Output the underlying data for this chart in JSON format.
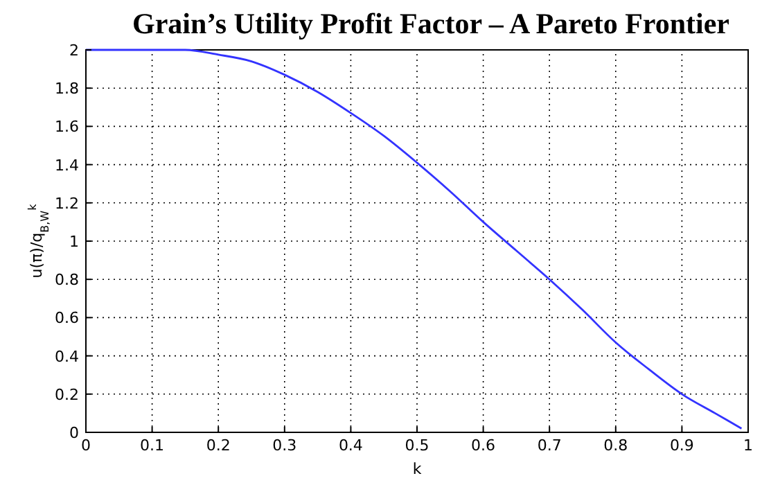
{
  "chart_data": {
    "type": "line",
    "title": "Grain’s Utility Profit Factor – A Pareto Frontier",
    "xlabel": "k",
    "ylabel": "u(π)/q$_{B,W}$$^{k}$",
    "x": [
      0,
      0.05,
      0.1,
      0.15,
      0.2,
      0.25,
      0.3,
      0.35,
      0.4,
      0.45,
      0.5,
      0.55,
      0.6,
      0.65,
      0.7,
      0.75,
      0.8,
      0.85,
      0.9,
      0.95,
      0.99
    ],
    "series": [
      {
        "color": "#3333ff",
        "values": [
          2,
          2,
          2,
          2,
          1.975,
          1.94,
          1.87,
          1.78,
          1.67,
          1.55,
          1.41,
          1.26,
          1.1,
          0.95,
          0.8,
          0.64,
          0.47,
          0.33,
          0.2,
          0.1,
          0.02
        ]
      }
    ],
    "xlim": [
      0,
      1
    ],
    "xticks": [
      0,
      0.1,
      0.2,
      0.3,
      0.4,
      0.5,
      0.6,
      0.7,
      0.8,
      0.9,
      1
    ],
    "ylim": [
      0,
      2
    ],
    "yticks": [
      0,
      0.2,
      0.4,
      0.6,
      0.8,
      1,
      1.2,
      1.4,
      1.6,
      1.8,
      2
    ],
    "grid": true,
    "marker": "none",
    "line_style": "solid"
  }
}
